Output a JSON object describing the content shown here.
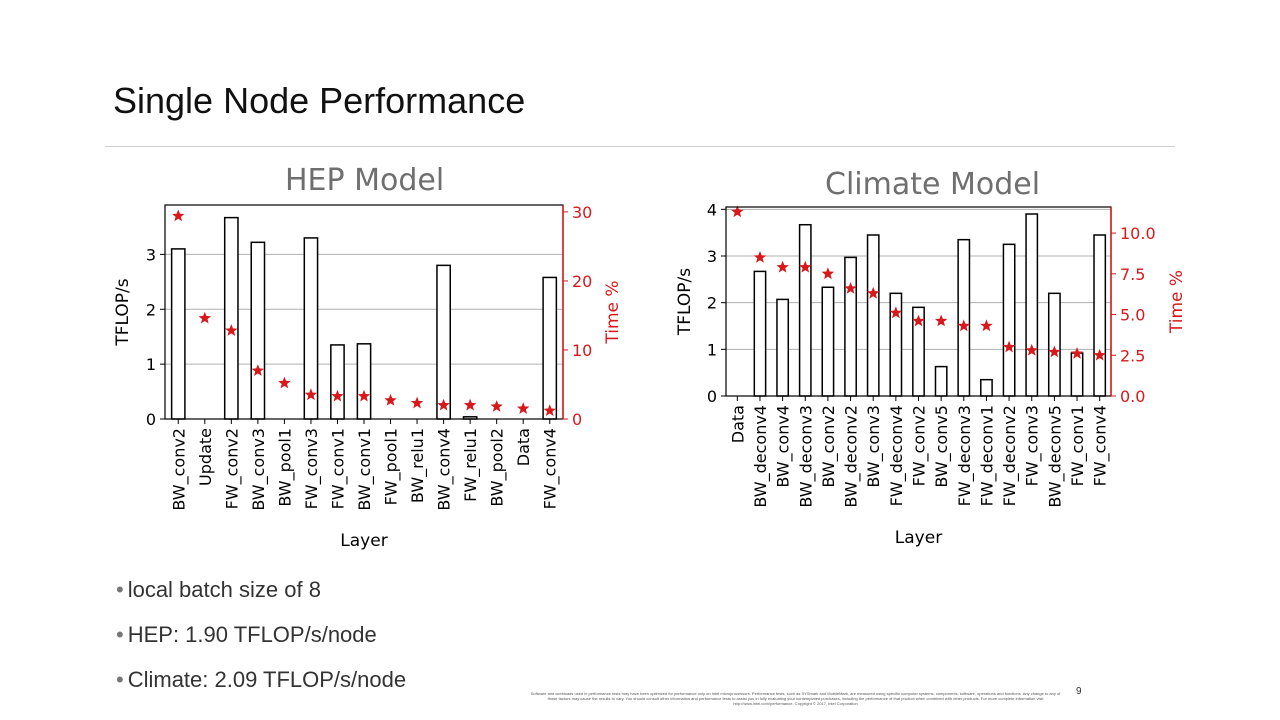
{
  "slide": {
    "title": "Single Node Performance",
    "bullets": [
      "local batch size of 8",
      "HEP: 1.90 TFLOP/s/node",
      "Climate: 2.09 TFLOP/s/node"
    ],
    "page_number": "9",
    "disclaimer": "Software and workloads used in performance tests may have been optimized for performance only on Intel microprocessors. Performance tests, such as SYSmark and MobileMark, are measured using specific computer systems, components, software, operations and functions. Any change to any of those factors may cause the results to vary. You should consult other information and performance tests to assist you in fully evaluating your contemplated purchases, including the performance of that product when combined with other products. For more complete information visit http://www.intel.com/performance. Copyright © 2017, Intel Corporation"
  },
  "chart_data": [
    {
      "type": "bar",
      "title": "HEP Model",
      "xlabel": "Layer",
      "ylabel": "TFLOP/s",
      "y2label": "Time %",
      "ylim": [
        0,
        3.9
      ],
      "y2lim": [
        0,
        31
      ],
      "yticks": [
        0,
        1,
        2,
        3
      ],
      "y2ticks": [
        0,
        10,
        20,
        30
      ],
      "grid": true,
      "bar_color": "#ffffff",
      "bar_edge_color": "#000000",
      "marker_color": "#d7191c",
      "categories": [
        "BW_conv2",
        "Update",
        "FW_conv2",
        "BW_conv3",
        "BW_pool1",
        "FW_conv3",
        "FW_conv1",
        "BW_conv1",
        "FW_pool1",
        "BW_relu1",
        "BW_conv4",
        "FW_relu1",
        "BW_pool2",
        "Data",
        "FW_conv4"
      ],
      "series": [
        {
          "values": [
            3.1,
            0.0,
            3.67,
            3.22,
            0.0,
            3.3,
            1.35,
            1.37,
            0.0,
            0.0,
            2.8,
            0.04,
            0.0,
            0.0,
            2.58
          ]
        },
        {
          "values": [
            29.4,
            14.6,
            12.8,
            7.0,
            5.2,
            3.5,
            3.3,
            3.3,
            2.7,
            2.3,
            2.0,
            2.0,
            1.8,
            1.5,
            1.2
          ]
        }
      ]
    },
    {
      "type": "bar",
      "title": "Climate Model",
      "xlabel": "Layer",
      "ylabel": "TFLOP/s",
      "y2label": "Time %",
      "ylim": [
        0,
        4.05
      ],
      "y2lim": [
        0,
        11.6
      ],
      "yticks": [
        0,
        1,
        2,
        3,
        4
      ],
      "y2ticks": [
        "0.0",
        "2.5",
        "5.0",
        "7.5",
        "10.0"
      ],
      "grid": true,
      "bar_color": "#ffffff",
      "bar_edge_color": "#000000",
      "marker_color": "#d7191c",
      "categories": [
        "Data",
        "BW_deconv4",
        "BW_conv4",
        "BW_deconv3",
        "BW_conv2",
        "BW_deconv2",
        "BW_conv3",
        "FW_deconv4",
        "FW_conv2",
        "BW_conv5",
        "FW_deconv3",
        "FW_deconv1",
        "FW_deconv2",
        "FW_conv3",
        "BW_deconv5",
        "FW_conv1",
        "FW_conv4"
      ],
      "series": [
        {
          "values": [
            0.0,
            2.67,
            2.07,
            3.67,
            2.33,
            2.97,
            3.45,
            2.2,
            1.9,
            0.63,
            3.35,
            0.35,
            3.25,
            3.9,
            2.2,
            0.92,
            3.45
          ]
        },
        {
          "values": [
            11.3,
            8.5,
            7.9,
            7.9,
            7.5,
            6.6,
            6.3,
            5.1,
            4.6,
            4.6,
            4.3,
            4.3,
            3.0,
            2.8,
            2.7,
            2.6,
            2.5
          ]
        }
      ]
    }
  ]
}
